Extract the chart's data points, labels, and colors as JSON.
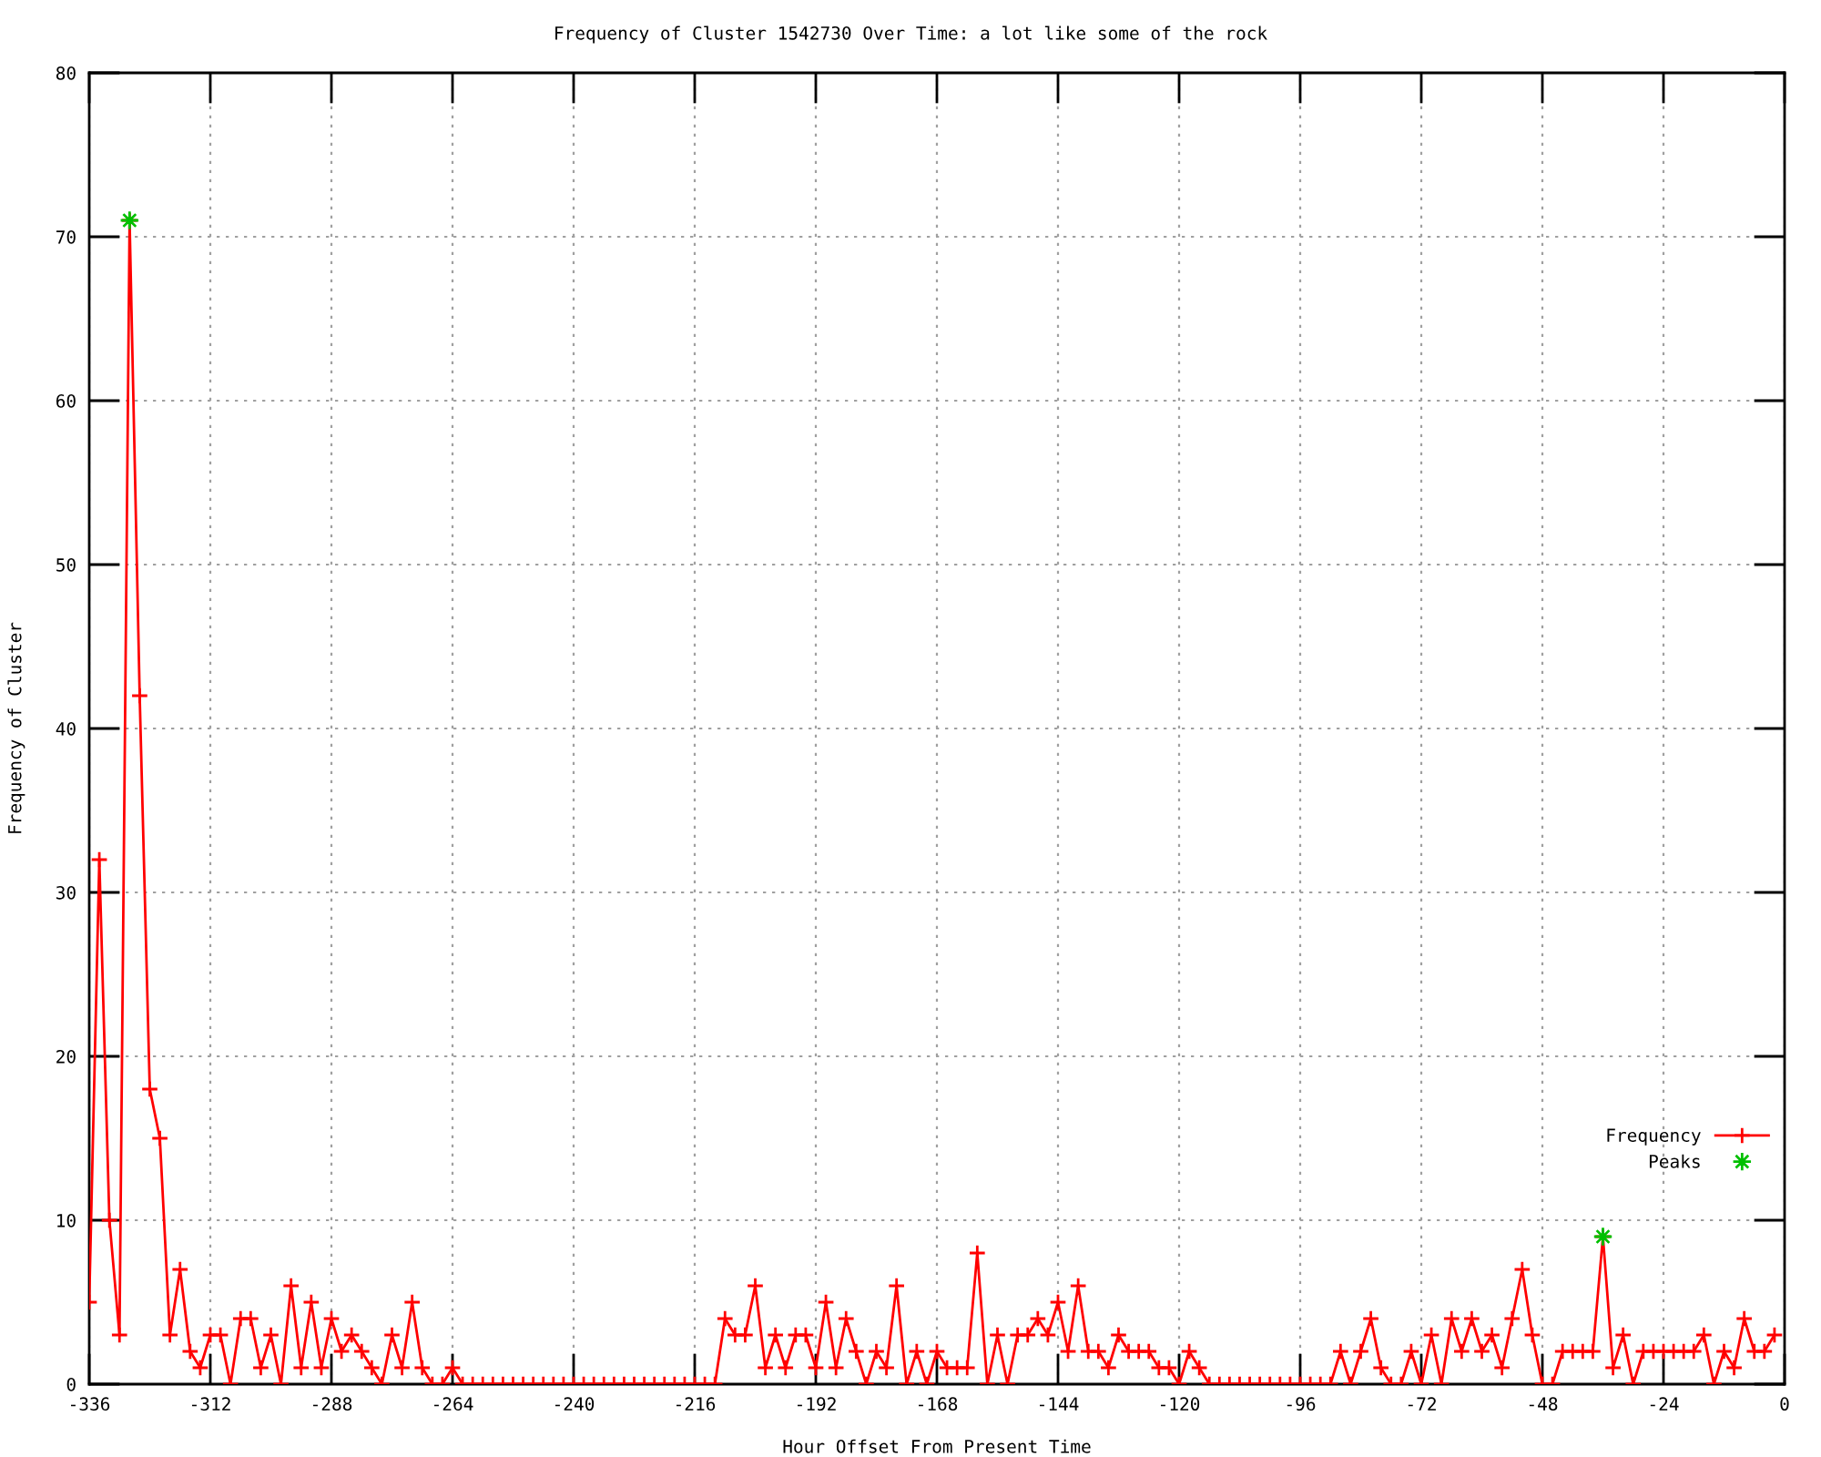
{
  "chart_data": {
    "type": "line",
    "title": "Frequency of Cluster 1542730 Over Time: a lot like some of the rock",
    "xlabel": "Hour Offset From Present Time",
    "ylabel": "Frequency of Cluster",
    "xlim": [
      -336,
      0
    ],
    "xticks": [
      -336,
      -312,
      -288,
      -264,
      -240,
      -216,
      -192,
      -168,
      -144,
      -120,
      -96,
      -72,
      -48,
      -24,
      0
    ],
    "ylim": [
      0,
      80
    ],
    "yticks": [
      0,
      10,
      20,
      30,
      40,
      50,
      60,
      70,
      80
    ],
    "grid": true,
    "legend": "bottom right",
    "series": [
      {
        "name": "Frequency",
        "color": "#ff0000",
        "marker": "cross",
        "line_style": "solid",
        "x": [
          -336,
          -334,
          -332,
          -330,
          -328,
          -326,
          -324,
          -322,
          -320,
          -318,
          -316,
          -314,
          -312,
          -310,
          -308,
          -306,
          -304,
          -302,
          -300,
          -298,
          -296,
          -294,
          -292,
          -290,
          -288,
          -286,
          -284,
          -282,
          -280,
          -278,
          -276,
          -274,
          -272,
          -270,
          -268,
          -266,
          -264,
          -262,
          -260,
          -258,
          -256,
          -254,
          -252,
          -250,
          -248,
          -246,
          -244,
          -242,
          -240,
          -238,
          -236,
          -234,
          -232,
          -230,
          -228,
          -226,
          -224,
          -222,
          -220,
          -218,
          -216,
          -214,
          -212,
          -210,
          -208,
          -206,
          -204,
          -202,
          -200,
          -198,
          -196,
          -194,
          -192,
          -190,
          -188,
          -186,
          -184,
          -182,
          -180,
          -178,
          -176,
          -174,
          -172,
          -170,
          -168,
          -166,
          -164,
          -162,
          -160,
          -158,
          -156,
          -154,
          -152,
          -150,
          -148,
          -146,
          -144,
          -142,
          -140,
          -138,
          -136,
          -134,
          -132,
          -130,
          -128,
          -126,
          -124,
          -122,
          -120,
          -118,
          -116,
          -114,
          -112,
          -110,
          -108,
          -106,
          -104,
          -102,
          -100,
          -98,
          -96,
          -94,
          -92,
          -90,
          -88,
          -86,
          -84,
          -82,
          -80,
          -78,
          -76,
          -74,
          -72,
          -70,
          -68,
          -66,
          -64,
          -62,
          -60,
          -58,
          -56,
          -54,
          -52,
          -50,
          -48,
          -46,
          -44,
          -42,
          -40,
          -38,
          -36,
          -34,
          -32,
          -30,
          -28,
          -26,
          -24,
          -22,
          -20,
          -18,
          -16,
          -14,
          -12,
          -10,
          -8,
          -6,
          -4,
          -2
        ],
        "values": [
          5,
          32,
          10,
          3,
          71,
          42,
          18,
          15,
          3,
          7,
          2,
          1,
          3,
          3,
          0,
          4,
          4,
          1,
          3,
          0,
          6,
          1,
          5,
          1,
          4,
          2,
          3,
          2,
          1,
          0,
          3,
          1,
          5,
          1,
          0,
          0,
          1,
          0,
          0,
          0,
          0,
          0,
          0,
          0,
          0,
          0,
          0,
          0,
          0,
          0,
          0,
          0,
          0,
          0,
          0,
          0,
          0,
          0,
          0,
          0,
          0,
          0,
          0,
          4,
          3,
          3,
          6,
          1,
          3,
          1,
          3,
          3,
          1,
          5,
          1,
          4,
          2,
          0,
          2,
          1,
          6,
          0,
          2,
          0,
          2,
          1,
          1,
          1,
          8,
          0,
          3,
          0,
          3,
          3,
          4,
          3,
          5,
          2,
          6,
          2,
          2,
          1,
          3,
          2,
          2,
          2,
          1,
          1,
          0,
          2,
          1,
          0,
          0,
          0,
          0,
          0,
          0,
          0,
          0,
          0,
          0,
          0,
          0,
          0,
          2,
          0,
          2,
          4,
          1,
          0,
          0,
          2,
          0,
          3,
          0,
          4,
          2,
          4,
          2,
          3,
          1,
          4,
          7,
          3,
          0,
          0,
          2,
          2,
          2,
          2,
          9,
          1,
          3,
          0,
          2,
          2,
          2,
          2,
          2,
          2,
          3,
          0,
          2,
          1,
          4,
          2,
          2,
          3
        ]
      },
      {
        "name": "Peaks",
        "type": "scatter",
        "color": "#00c000",
        "marker": "star",
        "x": [
          -328,
          -36
        ],
        "values": [
          71,
          9
        ]
      }
    ]
  }
}
